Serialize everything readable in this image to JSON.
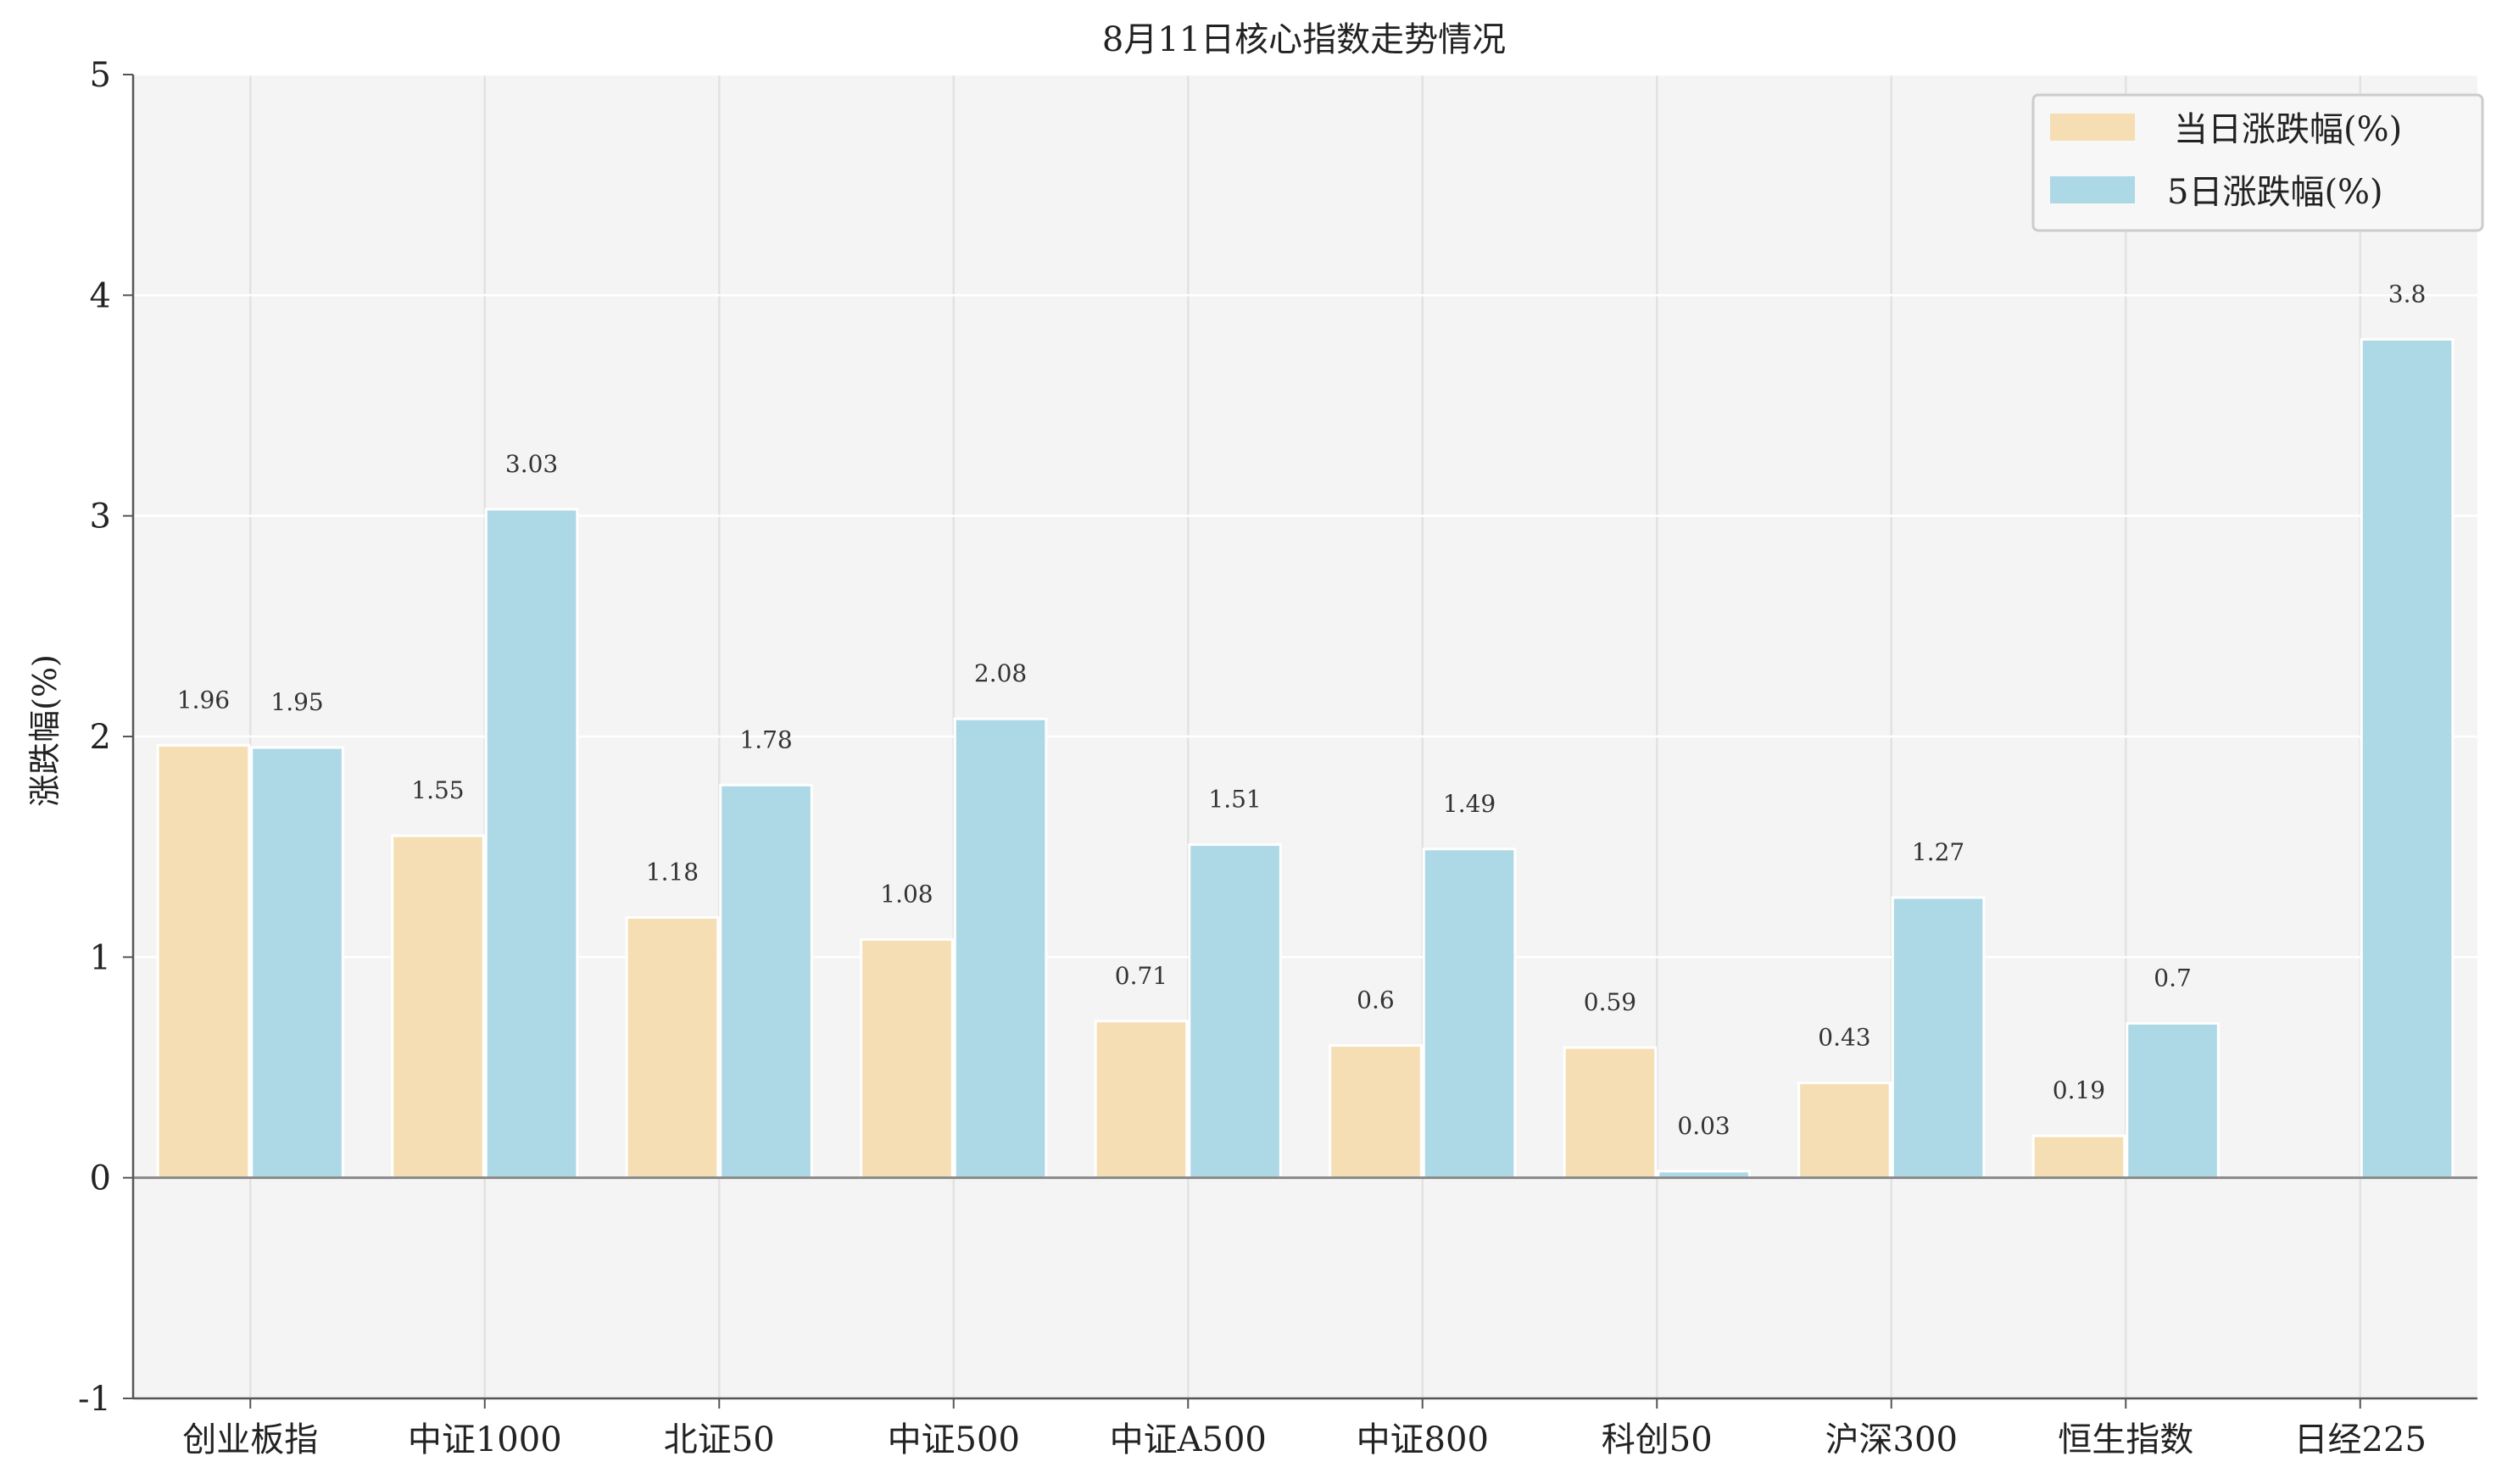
{
  "chart_data": {
    "type": "bar",
    "title": "8月11日核心指数走势情况",
    "xlabel": "",
    "ylabel": "涨跌幅(%)",
    "ylim": [
      -1,
      5
    ],
    "yticks": [
      -1,
      0,
      1,
      2,
      3,
      4,
      5
    ],
    "grid": true,
    "legend_position": "top-right",
    "categories": [
      "创业板指",
      "中证1000",
      "北证50",
      "中证500",
      "中证A500",
      "中证800",
      "科创50",
      "沪深300",
      "恒生指数",
      "日经225"
    ],
    "series": [
      {
        "name": "当日涨跌幅(%)",
        "color": "#f5deb3",
        "values": [
          1.96,
          1.55,
          1.18,
          1.08,
          0.71,
          0.6,
          0.59,
          0.43,
          0.19,
          null
        ],
        "labels": [
          "1.96",
          "1.55",
          "1.18",
          "1.08",
          "0.71",
          "0.6",
          "0.59",
          "0.43",
          "0.19",
          ""
        ]
      },
      {
        "name": "5日涨跌幅(%)",
        "color": "#add8e6",
        "values": [
          1.95,
          3.03,
          1.78,
          2.08,
          1.51,
          1.49,
          0.03,
          1.27,
          0.7,
          3.8
        ],
        "labels": [
          "1.95",
          "3.03",
          "1.78",
          "2.08",
          "1.51",
          "1.49",
          "0.03",
          "1.27",
          "0.7",
          "3.8"
        ]
      }
    ]
  }
}
